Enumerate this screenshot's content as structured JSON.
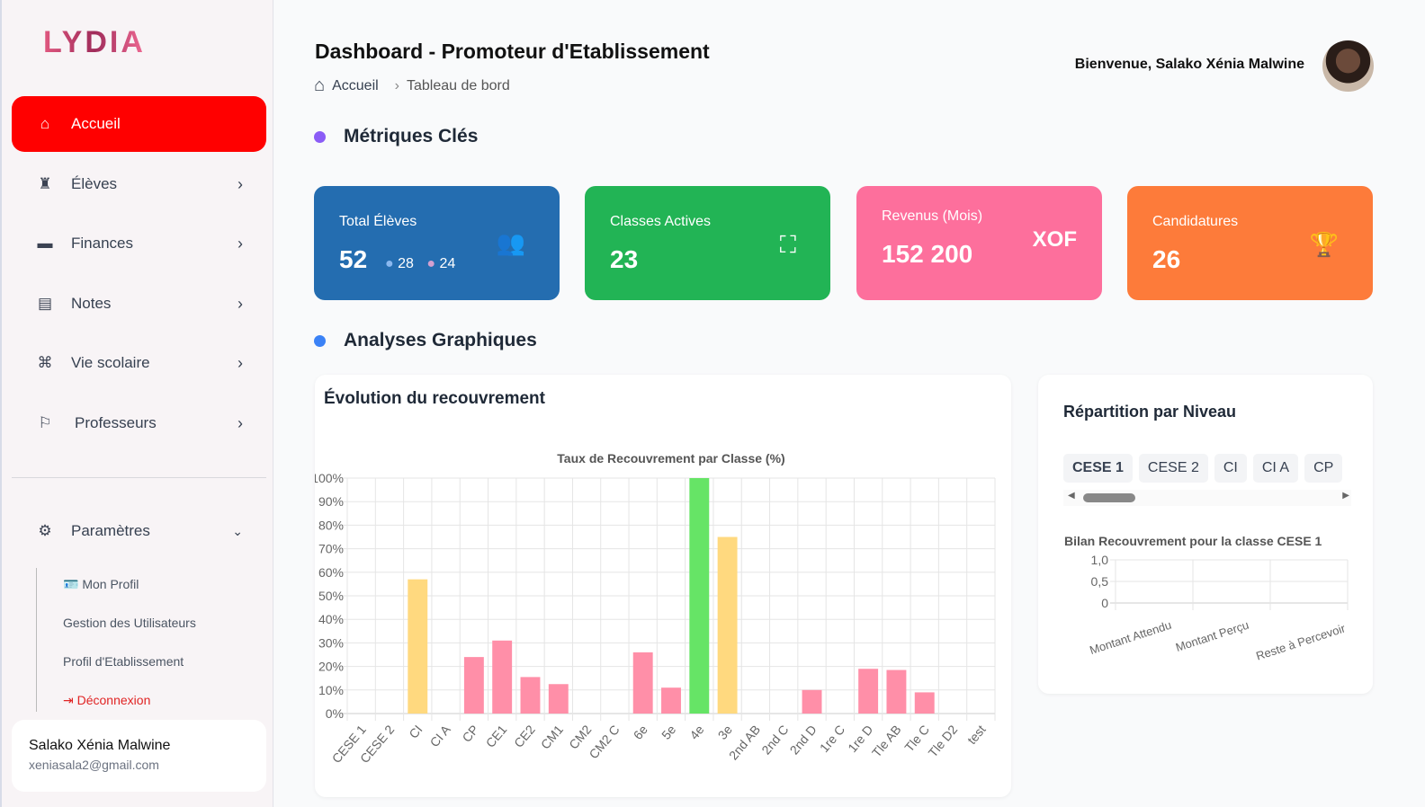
{
  "sidebar": {
    "logo": "LYDIA",
    "items": [
      {
        "label": "Accueil",
        "icon": "home-icon"
      },
      {
        "label": "Élèves",
        "icon": "graduate-icon"
      },
      {
        "label": "Finances",
        "icon": "wallet-icon"
      },
      {
        "label": "Notes",
        "icon": "file-icon"
      },
      {
        "label": "Vie scolaire",
        "icon": "school-icon"
      },
      {
        "label": "Professeurs",
        "icon": "teacher-icon"
      }
    ],
    "settings": {
      "label": "Paramètres",
      "sub": [
        "Mon Profil",
        "Gestion des Utilisateurs",
        "Profil d'Etablissement",
        "Déconnexion"
      ]
    },
    "user": {
      "name": "Salako Xénia Malwine",
      "email": "xeniasala2@gmail.com"
    }
  },
  "header": {
    "title": "Dashboard - Promoteur d'Etablissement",
    "breadcrumb": [
      "Accueil",
      "Tableau de bord"
    ],
    "welcome": "Bienvenue, Salako Xénia Malwine"
  },
  "sections": {
    "metrics": "Métriques Clés",
    "charts": "Analyses Graphiques"
  },
  "metrics": [
    {
      "label": "Total Élèves",
      "value": "52",
      "boys": "28",
      "girls": "24",
      "color": "#246db0"
    },
    {
      "label": "Classes Actives",
      "value": "23",
      "color": "#22b455"
    },
    {
      "label": "Revenus (Mois)",
      "value": "152 200",
      "unit": "XOF",
      "color": "#fd6f9c"
    },
    {
      "label": "Candidatures",
      "value": "26",
      "color": "#fd7b3a"
    }
  ],
  "panels": {
    "recouvrement_title": "Évolution du recouvrement",
    "repartition_title": "Répartition par Niveau",
    "tabs": [
      "CESE 1",
      "CESE 2",
      "CI",
      "CI A",
      "CP"
    ]
  },
  "chart_data": [
    {
      "type": "bar",
      "title": "Taux de Recouvrement par Classe (%)",
      "categories": [
        "CESE 1",
        "CESE 2",
        "CI",
        "CI A",
        "CP",
        "CE1",
        "CE2",
        "CM1",
        "CM2",
        "CM2 C",
        "6e",
        "5e",
        "4e",
        "3e",
        "2nd AB",
        "2nd C",
        "2nd D",
        "1re C",
        "1re D",
        "Tle AB",
        "Tle C",
        "Tle D2",
        "test"
      ],
      "values": [
        0,
        0,
        57,
        0,
        24,
        31,
        15.5,
        12.5,
        0,
        0,
        26,
        11,
        100,
        75,
        0,
        0,
        10,
        0,
        19,
        18.5,
        9,
        0,
        0
      ],
      "ylim": [
        0,
        100
      ],
      "yticks": [
        "0%",
        "10%",
        "20%",
        "30%",
        "40%",
        "50%",
        "60%",
        "70%",
        "80%",
        "90%",
        "100%"
      ],
      "colors": {
        "low": "#ff8fa8",
        "mid": "#ffd97f",
        "full": "#66e466"
      }
    },
    {
      "type": "bar",
      "title": "Bilan Recouvrement pour la classe CESE 1",
      "categories": [
        "Montant Attendu",
        "Montant Perçu",
        "Reste à Percevoir"
      ],
      "values": [
        0,
        0,
        0
      ],
      "ylim": [
        0,
        1
      ],
      "yticks": [
        "0",
        "0,5",
        "1,0"
      ]
    }
  ]
}
